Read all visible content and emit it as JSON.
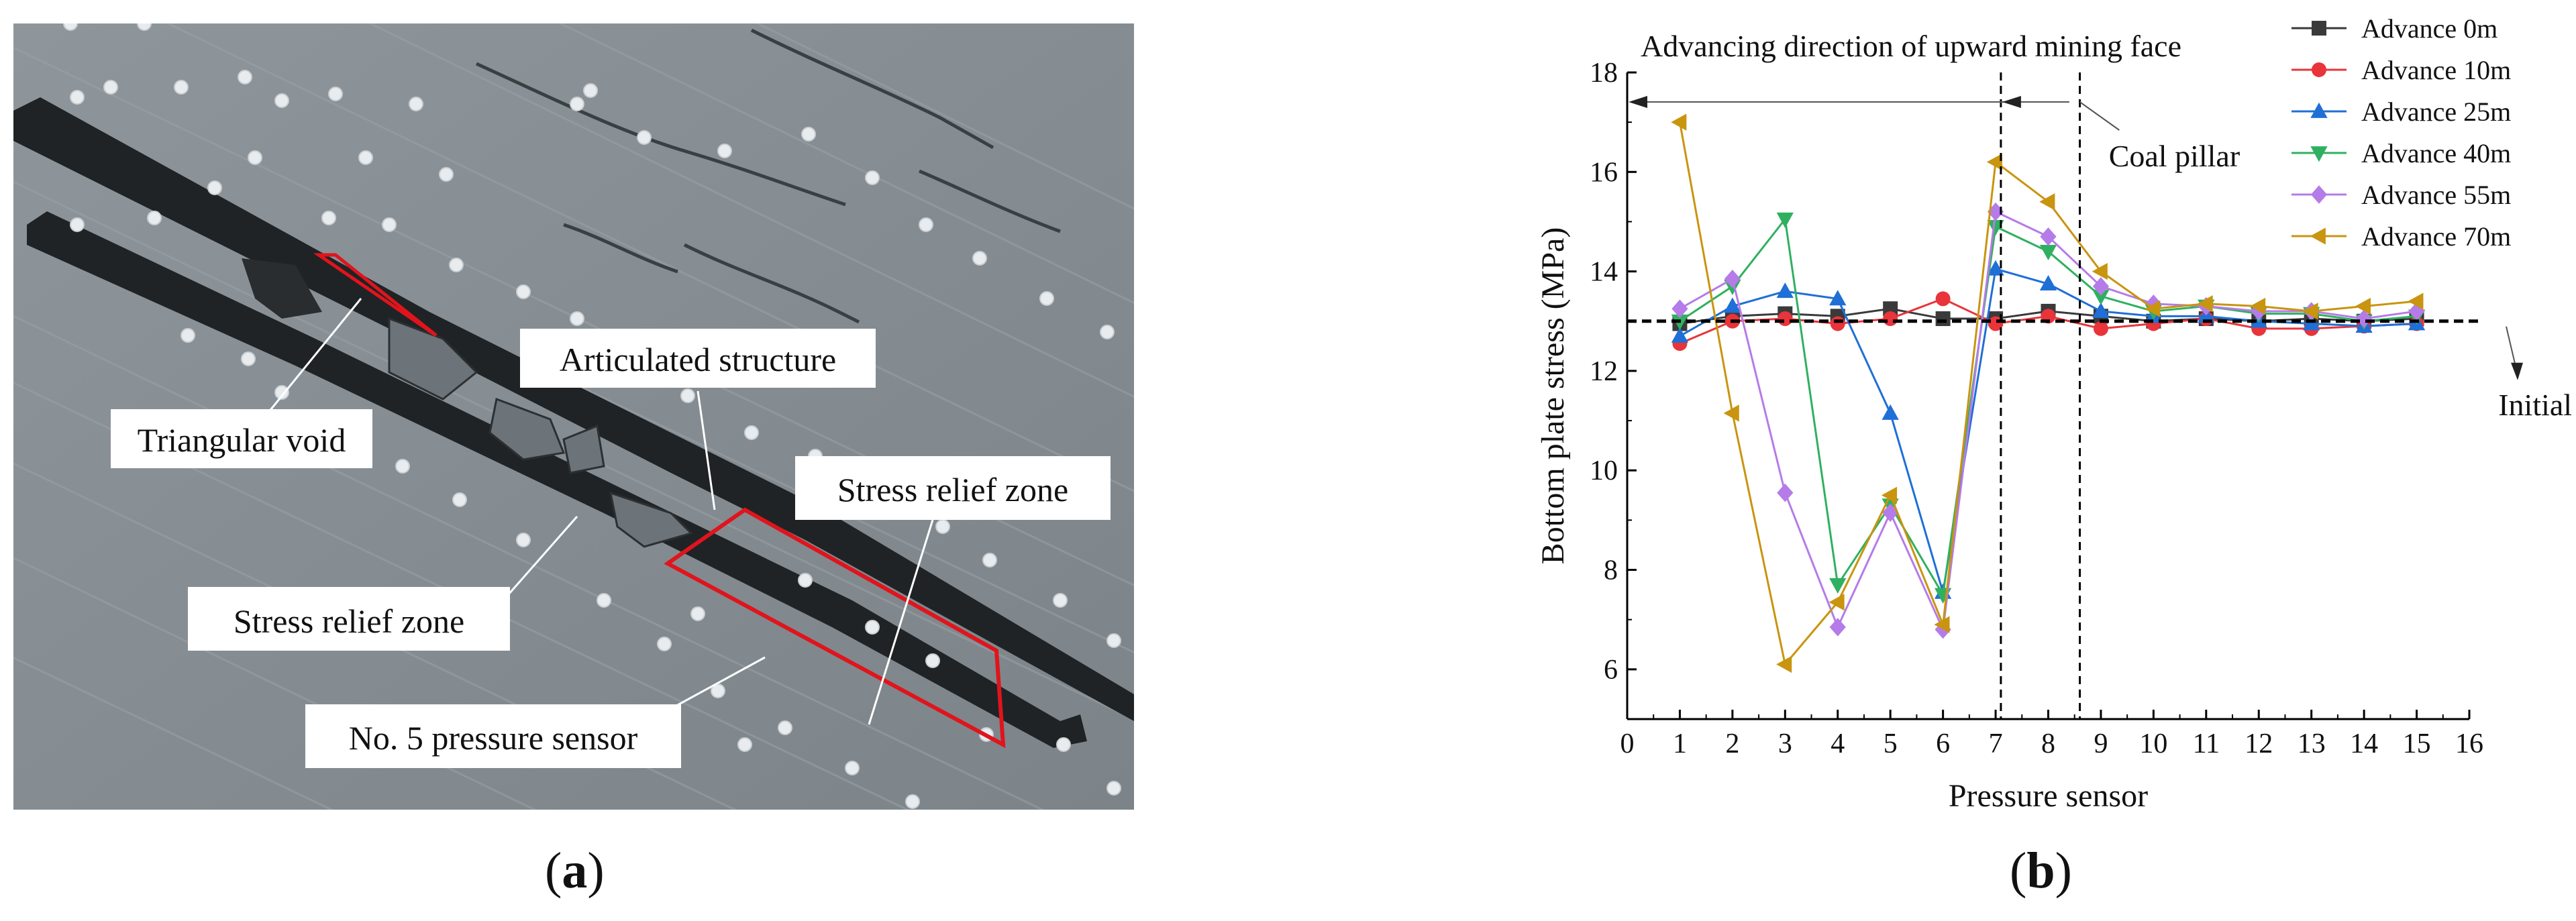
{
  "figure_labels": {
    "a_open": "(",
    "a_letter": "a",
    "a_close": ")",
    "b_open": "(",
    "b_letter": "b",
    "b_close": ")"
  },
  "panel_a": {
    "annotations": [
      {
        "id": "triangular-void",
        "text": "Triangular void"
      },
      {
        "id": "articulated-structure",
        "text": "Articulated structure"
      },
      {
        "id": "stress-relief-zone-right",
        "text": "Stress relief zone"
      },
      {
        "id": "stress-relief-zone-left",
        "text": "Stress relief zone"
      },
      {
        "id": "pressure-sensor-5",
        "text": "No. 5 pressure sensor"
      }
    ],
    "colors": {
      "rock": "#8a9298",
      "seam": "#1e2224",
      "highlight": "#e0141c",
      "sensor": "#e8ecef"
    }
  },
  "chart_data": {
    "type": "line",
    "xlabel": "Pressure sensor",
    "ylabel": "Bottom plate stress (MPa)",
    "xlim": [
      0,
      16
    ],
    "ylim": [
      5,
      18
    ],
    "xticks": [
      0,
      1,
      2,
      3,
      4,
      5,
      6,
      7,
      8,
      9,
      10,
      11,
      12,
      13,
      14,
      15,
      16
    ],
    "yticks": [
      6,
      8,
      10,
      12,
      14,
      16,
      18
    ],
    "x": [
      1,
      2,
      3,
      4,
      5,
      6,
      7,
      8,
      9,
      10,
      11,
      12,
      13,
      14,
      15
    ],
    "legend_position": "top-right",
    "grid": false,
    "series": [
      {
        "name": "Advance 0m",
        "color": "#3a3a3a",
        "marker": "square",
        "values": [
          12.95,
          13.1,
          13.15,
          13.1,
          13.25,
          13.05,
          13.05,
          13.2,
          13.1,
          13.0,
          13.05,
          13.0,
          13.05,
          13.0,
          13.05
        ]
      },
      {
        "name": "Advance 10m",
        "color": "#e8343a",
        "marker": "circle",
        "values": [
          12.55,
          13.0,
          13.05,
          12.95,
          13.05,
          13.45,
          12.95,
          13.1,
          12.85,
          12.95,
          13.05,
          12.85,
          12.85,
          12.9,
          12.95
        ]
      },
      {
        "name": "Advance 25m",
        "color": "#1f6fd6",
        "marker": "triangle-up",
        "values": [
          12.7,
          13.3,
          13.6,
          13.45,
          11.15,
          7.55,
          14.05,
          13.75,
          13.2,
          13.1,
          13.1,
          13.0,
          12.95,
          12.9,
          12.95
        ]
      },
      {
        "name": "Advance 40m",
        "color": "#2fb060",
        "marker": "triangle-down",
        "values": [
          13.0,
          13.7,
          15.05,
          7.7,
          9.3,
          7.5,
          14.9,
          14.4,
          13.5,
          13.2,
          13.3,
          13.15,
          13.15,
          13.0,
          13.1
        ]
      },
      {
        "name": "Advance 55m",
        "color": "#b57be8",
        "marker": "diamond",
        "values": [
          13.25,
          13.85,
          9.55,
          6.85,
          9.15,
          6.8,
          15.2,
          14.7,
          13.7,
          13.35,
          13.3,
          13.2,
          13.2,
          13.05,
          13.2
        ]
      },
      {
        "name": "Advance 70m",
        "color": "#c9940f",
        "marker": "triangle-left",
        "values": [
          17.0,
          11.15,
          6.1,
          7.35,
          9.5,
          6.9,
          16.2,
          15.4,
          14.0,
          13.25,
          13.35,
          13.3,
          13.2,
          13.3,
          13.4
        ]
      }
    ],
    "reference_line": {
      "y": 13.0,
      "label": "Initial stress"
    },
    "vertical_lines": [
      7.1,
      8.6
    ],
    "annotations": {
      "advancing_direction": "Advancing direction of upward mining face",
      "coal_pillar": "Coal pillar",
      "initial_stress": "Initial stress"
    }
  }
}
